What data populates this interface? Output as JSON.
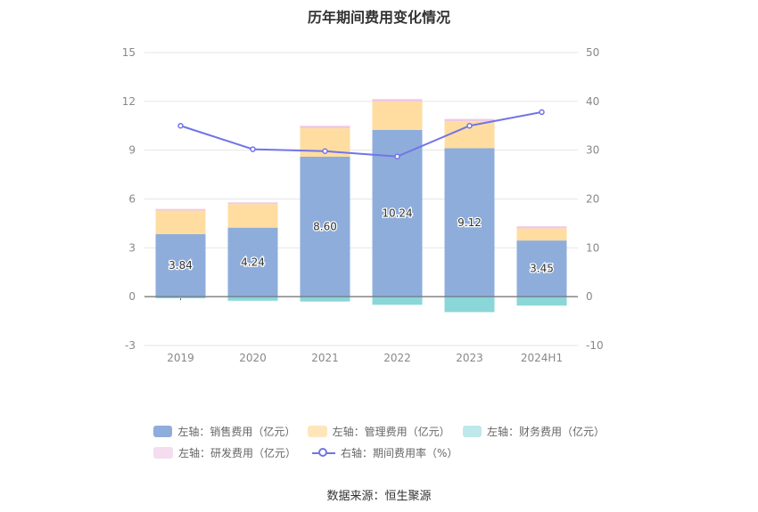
{
  "chart_data": {
    "type": "bar",
    "title": "历年期间费用变化情况",
    "categories": [
      "2019",
      "2020",
      "2021",
      "2022",
      "2023",
      "2024H1"
    ],
    "stacked": true,
    "series": [
      {
        "name": "左轴：销售费用（亿元）",
        "axis": "left",
        "color": "#8EADDB",
        "values": [
          3.84,
          4.24,
          8.6,
          10.24,
          9.12,
          3.45
        ],
        "labels": [
          "3.84",
          "4.24",
          "8.60",
          "10.24",
          "9.12",
          "3.45"
        ]
      },
      {
        "name": "左轴：管理费用（亿元）",
        "axis": "left",
        "color": "#FFDDA0",
        "values": [
          1.45,
          1.45,
          1.75,
          1.75,
          1.65,
          0.75
        ]
      },
      {
        "name": "左轴：财务费用（亿元）",
        "axis": "left",
        "color": "#8BD6D8",
        "values": [
          -0.1,
          -0.25,
          -0.3,
          -0.5,
          -0.95,
          -0.55
        ]
      },
      {
        "name": "左轴：研发费用（亿元）",
        "axis": "left",
        "color": "#F0C8E6",
        "values": [
          0.1,
          0.1,
          0.15,
          0.15,
          0.15,
          0.12
        ]
      },
      {
        "name": "右轴：期间费用率（%）",
        "axis": "right",
        "type": "line",
        "color": "#7174E8",
        "values": [
          35.0,
          30.2,
          29.8,
          28.7,
          35.0,
          37.8
        ]
      }
    ],
    "left_axis": {
      "ylim": [
        -3,
        15
      ],
      "ticks": [
        -3,
        0,
        3,
        6,
        9,
        12,
        15
      ]
    },
    "right_axis": {
      "ylim": [
        -10,
        50
      ],
      "ticks": [
        -10,
        0,
        10,
        20,
        30,
        40,
        50
      ]
    },
    "grid": true,
    "legend_position": "bottom"
  },
  "source": "数据来源：恒生聚源"
}
